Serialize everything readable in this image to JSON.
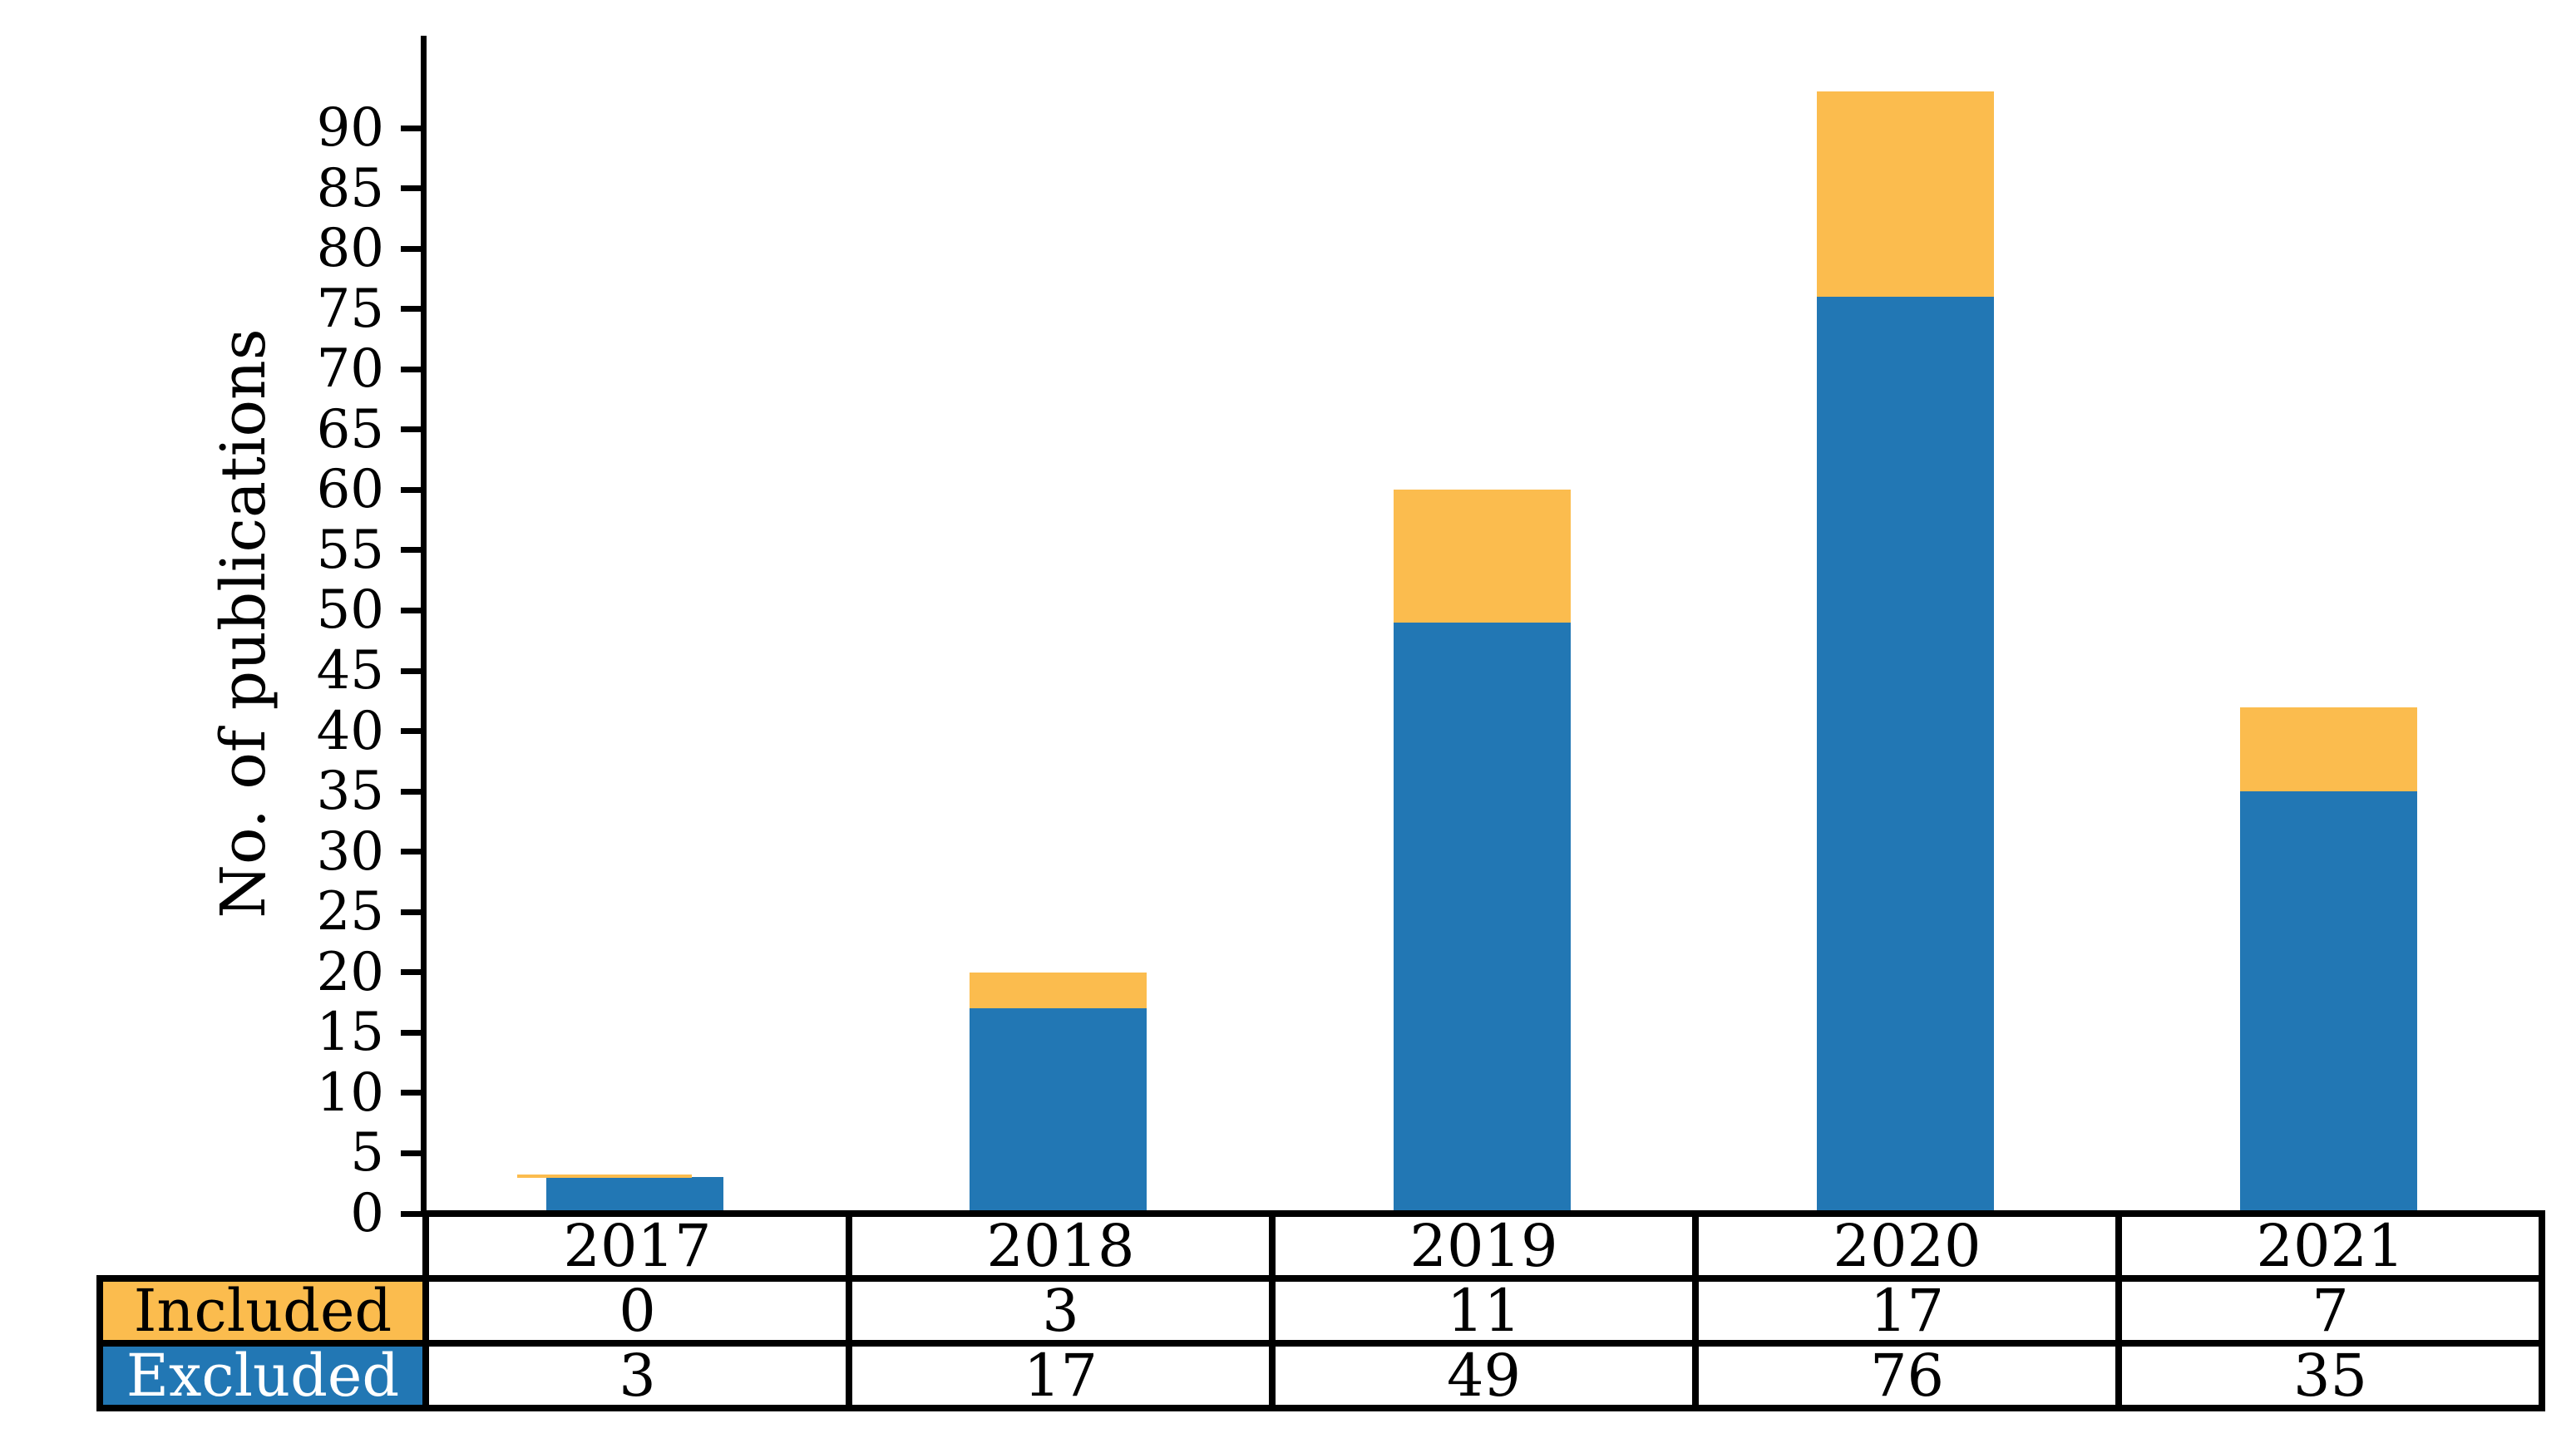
{
  "chart_data": {
    "type": "bar",
    "stacked": true,
    "title": "",
    "xlabel": "",
    "ylabel": "No. of publications",
    "categories": [
      "2017",
      "2018",
      "2019",
      "2020",
      "2021"
    ],
    "series": [
      {
        "name": "Included",
        "color": "#FBBC4E",
        "label_text_color": "#000000",
        "values": [
          0,
          3,
          11,
          17,
          7
        ]
      },
      {
        "name": "Excluded",
        "color": "#2277B4",
        "label_text_color": "#ffffff",
        "values": [
          3,
          17,
          49,
          76,
          35
        ]
      }
    ],
    "stack_order_bottom_to_top": [
      "Excluded",
      "Included"
    ],
    "totals": [
      3,
      20,
      60,
      93,
      42
    ],
    "ylim": [
      0,
      97.65
    ],
    "yticks": [
      0,
      5,
      10,
      15,
      20,
      25,
      30,
      35,
      40,
      45,
      50,
      55,
      60,
      65,
      70,
      75,
      80,
      85,
      90
    ],
    "grid": false,
    "legend_position": "table-row-headers",
    "axis_color": "#000000"
  }
}
